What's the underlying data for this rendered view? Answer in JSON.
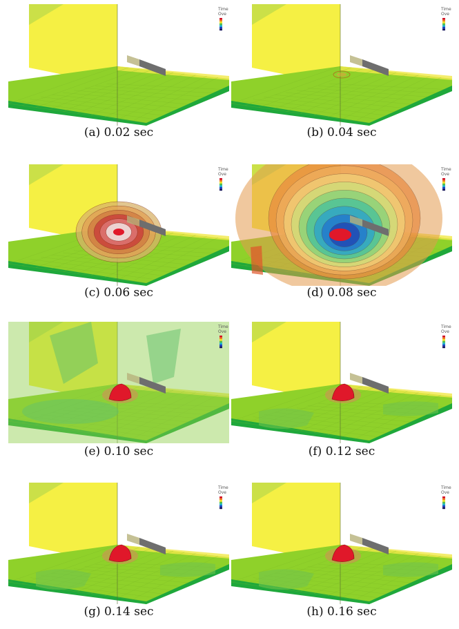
{
  "legend": {
    "line1": "Time",
    "line2": "Ove"
  },
  "panels": [
    {
      "id": "a",
      "caption": "(a) 0.02 sec",
      "state": "calm"
    },
    {
      "id": "b",
      "caption": "(b) 0.04 sec",
      "state": "ignite"
    },
    {
      "id": "c",
      "caption": "(c) 0.06 sec",
      "state": "shock-small"
    },
    {
      "id": "d",
      "caption": "(d) 0.08 sec",
      "state": "shock-large"
    },
    {
      "id": "e",
      "caption": "(e) 0.10 sec",
      "state": "green-wave"
    },
    {
      "id": "f",
      "caption": "(f) 0.12 sec",
      "state": "decay"
    },
    {
      "id": "g",
      "caption": "(g) 0.14 sec",
      "state": "decay"
    },
    {
      "id": "h",
      "caption": "(h) 0.16 sec",
      "state": "decay"
    }
  ],
  "colors": {
    "floor": "#8fd12a",
    "floor_edge": "#1fa83b",
    "wall_yellow": "#f4ef3a",
    "wall_green": "#8ecf4a",
    "fireball": "#e0182a",
    "barrier": "#6e6e6e"
  }
}
